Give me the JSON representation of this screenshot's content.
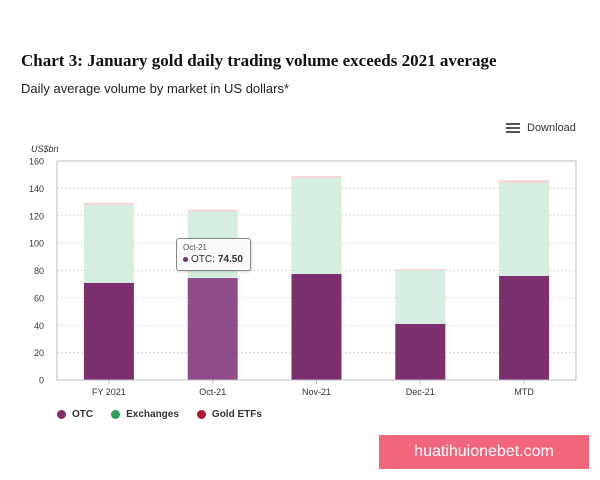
{
  "header": {
    "title": "Chart 3: January gold daily trading volume exceeds 2021 average",
    "subtitle": "Daily average volume by market in US dollars*"
  },
  "toolbar": {
    "download_label": "Download",
    "download_icon": "hamburger-menu-icon"
  },
  "chart_data": {
    "type": "bar",
    "stacked": true,
    "ylabel": "US$bn",
    "ylim": [
      0,
      160
    ],
    "yticks": [
      0,
      20,
      40,
      60,
      80,
      100,
      120,
      140,
      160
    ],
    "grid": true,
    "legend_position": "bottom-left",
    "categories": [
      "FY 2021",
      "Oct-21",
      "Nov-21",
      "Dec-21",
      "MTD"
    ],
    "series": [
      {
        "name": "OTC",
        "color": "#7b2f6f",
        "values": [
          71,
          74.5,
          77.5,
          41,
          76
        ]
      },
      {
        "name": "Exchanges",
        "color": "#d5eee0",
        "values": [
          57,
          48.5,
          70,
          39,
          68
        ]
      },
      {
        "name": "Gold ETFs",
        "color": "#f3d5d7",
        "values": [
          1.5,
          1.5,
          1.5,
          1,
          2
        ]
      }
    ],
    "highlight": {
      "index": 1,
      "color": "#8f4b8a"
    }
  },
  "tooltip": {
    "category": "Oct-21",
    "series_label": "OTC:",
    "value": "74.50"
  },
  "legend": [
    {
      "label": "OTC",
      "color": "#7b2f6f"
    },
    {
      "label": "Exchanges",
      "color": "#27a05d"
    },
    {
      "label": "Gold ETFs",
      "color": "#b0142e"
    }
  ],
  "watermark": {
    "text": "huatihuionebet.com"
  }
}
